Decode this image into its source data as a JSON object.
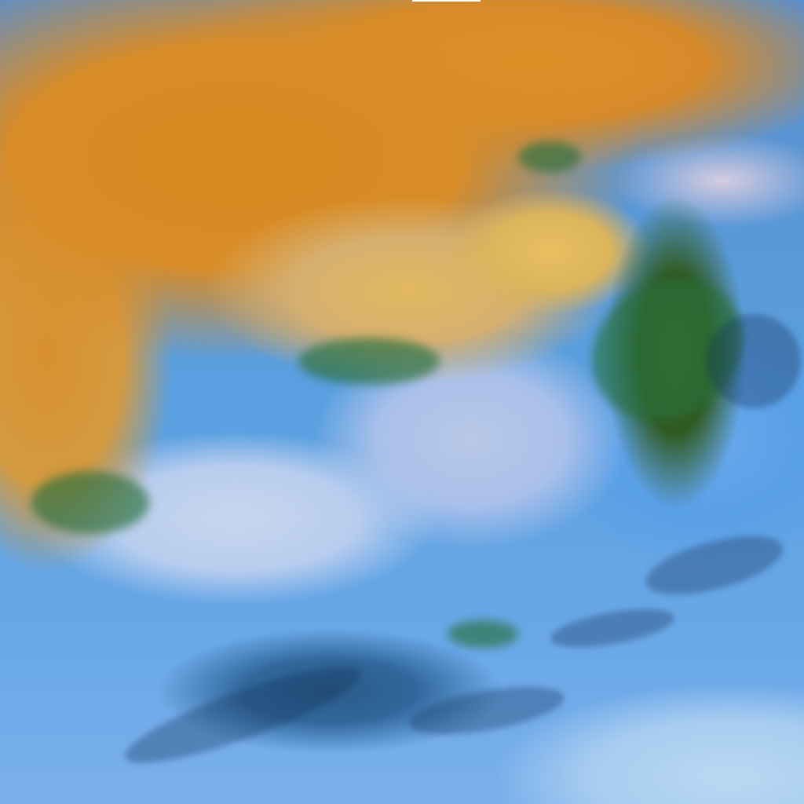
{
  "image": {
    "description_tags": [
      "satellite-imagery",
      "false-color",
      "cloud-cover"
    ],
    "colors": {
      "high_cloud_orange": "#d98a20",
      "mid_cloud_yellow": "#e2b860",
      "low_cloud_blue": "#5aa0e0",
      "land_green": "#3f6a1f",
      "pale_cloud": "#c6d6ee"
    }
  }
}
